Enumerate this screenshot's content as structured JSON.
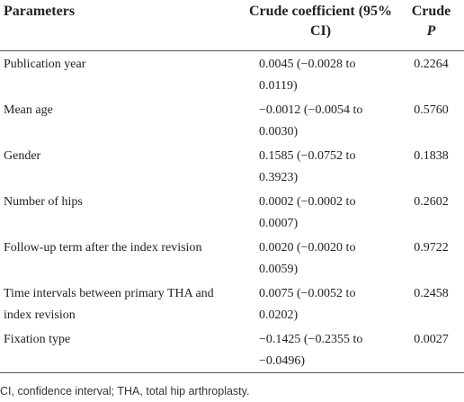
{
  "table": {
    "columns": [
      {
        "text": "Parameters"
      },
      {
        "text": "Crude coefficient (95% CI)"
      },
      {
        "text": "Crude",
        "emphasis": "P"
      }
    ],
    "rows": [
      [
        "Publication year",
        "0.0045 (−0.0028 to 0.0119)",
        "0.2264"
      ],
      [
        "Mean age",
        "−0.0012 (−0.0054 to 0.0030)",
        "0.5760"
      ],
      [
        "Gender",
        "0.1585 (−0.0752 to 0.3923)",
        "0.1838"
      ],
      [
        "Number of hips",
        "0.0002 (−0.0002 to 0.0007)",
        "0.2602"
      ],
      [
        "Follow-up term after the index revision",
        "0.0020 (−0.0020 to 0.0059)",
        "0.9722"
      ],
      [
        "Time intervals between primary THA and index revision",
        "0.0075 (−0.0052 to 0.0202)",
        "0.2458"
      ],
      [
        "Fixation type",
        "−0.1425 (−0.2355 to −0.0496)",
        "0.0027"
      ]
    ],
    "footnote": "CI, confidence interval; THA, total hip arthroplasty."
  }
}
